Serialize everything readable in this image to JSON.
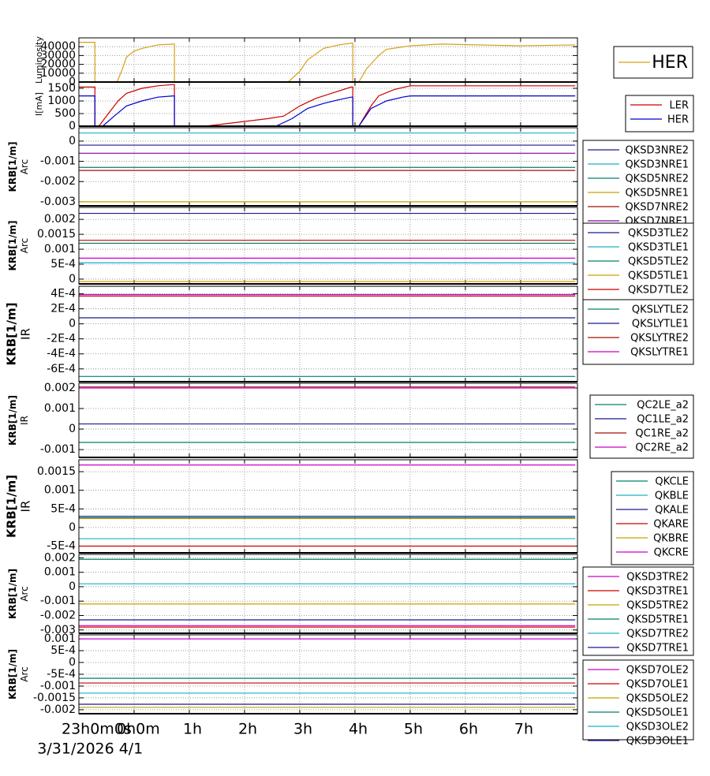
{
  "chart_data": [
    {
      "type": "line",
      "ylabel": [
        "Luminosity"
      ],
      "xlim": [
        -1,
        8.03
      ],
      "ylim": [
        0,
        50000
      ],
      "yticks": [
        0,
        10000,
        20000,
        30000,
        40000
      ],
      "grid": true,
      "legend": "right",
      "x": [
        -1,
        -0.71,
        -0.71,
        -0.31,
        -0.21,
        -0.14,
        0,
        0.14,
        0.43,
        0.71,
        0.73,
        0.73,
        2.79,
        3.0,
        3.14,
        3.43,
        3.71,
        3.93,
        3.96,
        3.96,
        4.07,
        4.21,
        4.43,
        4.57,
        5.0,
        5.57,
        7.0,
        7.99
      ],
      "series": [
        {
          "name": "HER",
          "color": "#d4a017",
          "values": [
            45000,
            45000,
            0,
            0,
            15000,
            28000,
            35000,
            38000,
            42000,
            43000,
            43000,
            0,
            0,
            12000,
            25000,
            38000,
            42000,
            44000,
            44000,
            0,
            0,
            15000,
            30000,
            37000,
            41000,
            43000,
            41000,
            42000
          ]
        }
      ]
    },
    {
      "type": "line",
      "ylabel": [
        "I[mA]"
      ],
      "xlim": [
        -1,
        8.03
      ],
      "ylim": [
        0,
        1750
      ],
      "yticks": [
        0,
        500,
        1000,
        1500
      ],
      "grid": true,
      "legend": "right",
      "series": [
        {
          "name": "LER",
          "color": "#cc0000",
          "x": [
            -1,
            -0.71,
            -0.71,
            -0.64,
            -0.43,
            -0.29,
            -0.14,
            0.14,
            0.43,
            0.71,
            0.73,
            0.73,
            1.29,
            2.43,
            2.71,
            3.0,
            3.29,
            3.57,
            3.93,
            3.96,
            3.96,
            4.07,
            4.29,
            4.43,
            4.71,
            5.0,
            7.99
          ],
          "values": [
            1550,
            1550,
            0,
            0,
            600,
            1000,
            1300,
            1500,
            1600,
            1650,
            1650,
            0,
            0,
            300,
            400,
            800,
            1100,
            1300,
            1550,
            1550,
            0,
            0,
            800,
            1200,
            1450,
            1600,
            1600
          ]
        },
        {
          "name": "HER",
          "color": "#0000cc",
          "x": [
            -1,
            -0.71,
            -0.71,
            -0.57,
            -0.36,
            -0.14,
            0.14,
            0.43,
            0.71,
            0.73,
            0.73,
            2.57,
            2.86,
            3.14,
            3.43,
            3.71,
            3.93,
            3.96,
            3.96,
            4.07,
            4.29,
            4.57,
            4.86,
            5.0,
            7.99
          ],
          "values": [
            1200,
            1200,
            0,
            0,
            400,
            800,
            1000,
            1150,
            1200,
            1200,
            0,
            0,
            300,
            700,
            900,
            1050,
            1150,
            1150,
            0,
            0,
            700,
            1000,
            1150,
            1200,
            1200
          ]
        }
      ]
    },
    {
      "type": "line",
      "ylabel": [
        "KRB[1/m]",
        "Arc"
      ],
      "xlim": [
        -1,
        8.03
      ],
      "ylim": [
        -0.0032,
        0.00066
      ],
      "yticks": [
        0,
        -0.001,
        -0.002,
        -0.003
      ],
      "grid": true,
      "legend": "right",
      "x": [
        -1,
        7.99
      ],
      "series": [
        {
          "name": "QKSD3NRE2",
          "color": "#1a1a8c",
          "values": [
            -0.0002,
            -0.0002
          ]
        },
        {
          "name": "QKSD3NRE1",
          "color": "#1ab0c8",
          "values": [
            0.0004,
            0.0004
          ]
        },
        {
          "name": "QKSD5NRE2",
          "color": "#00806a",
          "values": [
            -0.0013,
            -0.0013
          ]
        },
        {
          "name": "QKSD5NRE1",
          "color": "#c8a000",
          "values": [
            -0.003,
            -0.003
          ]
        },
        {
          "name": "QKSD7NRE2",
          "color": "#a01010",
          "values": [
            -0.00145,
            -0.00145
          ]
        },
        {
          "name": "QKSD7NRE1",
          "color": "#8000a0",
          "values": [
            -0.0006,
            -0.0006
          ]
        }
      ]
    },
    {
      "type": "line",
      "ylabel": [
        "KRB[1/m]",
        "Arc"
      ],
      "xlim": [
        -1,
        8.03
      ],
      "ylim": [
        -0.00016,
        0.0024
      ],
      "yticks": [
        0,
        {
          "value": 0.0005,
          "label": "5E-4"
        },
        0.001,
        0.0015,
        0.002
      ],
      "grid": true,
      "legend": "right",
      "x": [
        -1,
        7.99
      ],
      "series": [
        {
          "name": "QKSD3TLE2",
          "color": "#1a1a8c",
          "values": [
            0.0022,
            0.0022
          ]
        },
        {
          "name": "QKSD3TLE1",
          "color": "#1ab0c8",
          "values": [
            0.00055,
            0.00055
          ]
        },
        {
          "name": "QKSD5TLE2",
          "color": "#00806a",
          "values": [
            0.0012,
            0.0012
          ]
        },
        {
          "name": "QKSD5TLE1",
          "color": "#c8a000",
          "values": [
            -8e-05,
            -8e-05
          ]
        },
        {
          "name": "QKSD7TLE2",
          "color": "#cc0000",
          "values": [
            0.0013,
            0.0013
          ]
        },
        {
          "name": "QKSD7TLE1",
          "color": "#cc00cc",
          "values": [
            0.0007,
            0.0007
          ]
        }
      ]
    },
    {
      "type": "line",
      "ylabel": [
        "KRB[1/m]",
        "IR"
      ],
      "xlim": [
        -1,
        8.03
      ],
      "ylim": [
        -0.00077,
        0.0005
      ],
      "yticks": [
        {
          "value": 0.0004,
          "label": "4E-4"
        },
        {
          "value": 0.0002,
          "label": "2E-4"
        },
        0,
        {
          "value": -0.0002,
          "label": "-2E-4"
        },
        {
          "value": -0.0004,
          "label": "-4E-4"
        },
        {
          "value": -0.0006,
          "label": "-6E-4"
        }
      ],
      "grid": true,
      "legend": "right",
      "x": [
        -1,
        7.99
      ],
      "series": [
        {
          "name": "QKSLYTLE2",
          "color": "#00806a",
          "values": [
            -0.0007,
            -0.0007
          ]
        },
        {
          "name": "QKSLYTLE1",
          "color": "#1a1a8c",
          "values": [
            8e-05,
            8e-05
          ]
        },
        {
          "name": "QKSLYTRE2",
          "color": "#a01010",
          "values": [
            0.00037,
            0.00037
          ]
        },
        {
          "name": "QKSLYTRE1",
          "color": "#cc00cc",
          "values": [
            0.00039,
            0.00039
          ]
        }
      ]
    },
    {
      "type": "line",
      "ylabel": [
        "KRB[1/m]",
        "IR"
      ],
      "xlim": [
        -1,
        8.03
      ],
      "ylim": [
        -0.00138,
        0.00223
      ],
      "yticks": [
        0.002,
        0.001,
        0,
        -0.001
      ],
      "grid": true,
      "legend": "right",
      "x": [
        -1,
        7.99
      ],
      "series": [
        {
          "name": "QC2LE_a2",
          "color": "#00806a",
          "values": [
            -0.00065,
            -0.00065
          ]
        },
        {
          "name": "QC1LE_a2",
          "color": "#1a1a8c",
          "values": [
            0.00025,
            0.00025
          ]
        },
        {
          "name": "QC1RE_a2",
          "color": "#a01010",
          "values": [
            0.00205,
            0.00205
          ]
        },
        {
          "name": "QC2RE_a2",
          "color": "#cc00cc",
          "values": [
            0.002,
            0.002
          ]
        }
      ]
    },
    {
      "type": "line",
      "ylabel": [
        "KRB[1/m]",
        "IR"
      ],
      "xlim": [
        -1,
        8.03
      ],
      "ylim": [
        -0.00068,
        0.00182
      ],
      "yticks": [
        0.0015,
        0.001,
        {
          "value": 0.0005,
          "label": "5E-4"
        },
        0,
        {
          "value": -0.0005,
          "label": "-5E-4"
        }
      ],
      "grid": true,
      "legend": "right",
      "x": [
        -1,
        7.99
      ],
      "series": [
        {
          "name": "QKCLE",
          "color": "#00806a",
          "values": [
            0.00026,
            0.00026
          ]
        },
        {
          "name": "QKBLE",
          "color": "#1ab0c8",
          "values": [
            -0.0003,
            -0.0003
          ]
        },
        {
          "name": "QKALE",
          "color": "#1a1a8c",
          "values": [
            0.0003,
            0.0003
          ]
        },
        {
          "name": "QKARE",
          "color": "#cc0000",
          "values": [
            -0.0005,
            -0.0005
          ]
        },
        {
          "name": "QKBRE",
          "color": "#c8a000",
          "values": [
            0.00024,
            0.00024
          ]
        },
        {
          "name": "QKCRE",
          "color": "#cc00cc",
          "values": [
            0.00168,
            0.00168
          ]
        }
      ]
    },
    {
      "type": "line",
      "ylabel": [
        "KRB[1/m]",
        "Arc"
      ],
      "xlim": [
        -1,
        8.03
      ],
      "ylim": [
        -0.00323,
        0.00224
      ],
      "yticks": [
        0.002,
        0.001,
        0,
        -0.001,
        -0.002,
        -0.003
      ],
      "grid": true,
      "legend": "right",
      "x": [
        -1,
        7.99
      ],
      "series": [
        {
          "name": "QKSD3TRE2",
          "color": "#cc00cc",
          "values": [
            -0.0027,
            -0.0027
          ]
        },
        {
          "name": "QKSD3TRE1",
          "color": "#cc0000",
          "values": [
            -0.0028,
            -0.0028
          ]
        },
        {
          "name": "QKSD5TRE2",
          "color": "#c8a000",
          "values": [
            -0.0012,
            -0.0012
          ]
        },
        {
          "name": "QKSD5TRE1",
          "color": "#00806a",
          "values": [
            0.0019,
            0.0019
          ]
        },
        {
          "name": "QKSD7TRE2",
          "color": "#1ab0c8",
          "values": [
            0.0002,
            0.0002
          ]
        },
        {
          "name": "QKSD7TRE1",
          "color": "#1a1a8c",
          "values": [
            -0.0023,
            -0.0023
          ]
        }
      ]
    },
    {
      "type": "line",
      "ylabel": [
        "KRB[1/m]",
        "Arc"
      ],
      "xlim": [
        -1,
        8.03
      ],
      "ylim": [
        -0.00217,
        0.00117
      ],
      "yticks": [
        0.001,
        {
          "value": 0.0005,
          "label": "5E-4"
        },
        0,
        {
          "value": -0.0005,
          "label": "-5E-4"
        },
        -0.001,
        -0.0015,
        -0.002
      ],
      "grid": true,
      "legend": "right",
      "x": [
        -1,
        7.99
      ],
      "xticks": [
        {
          "value": -1,
          "label": "23h0m0s"
        },
        {
          "value": 0,
          "label": "0h0m"
        },
        {
          "value": 1,
          "label": "1h"
        },
        {
          "value": 2,
          "label": "2h"
        },
        {
          "value": 3,
          "label": "3h"
        },
        {
          "value": 4,
          "label": "4h"
        },
        {
          "value": 5,
          "label": "5h"
        },
        {
          "value": 6,
          "label": "6h"
        },
        {
          "value": 7,
          "label": "7h"
        }
      ],
      "date_labels": [
        {
          "value": -1,
          "label": "3/31/2026"
        },
        {
          "value": 0,
          "label": "4/1"
        }
      ],
      "series": [
        {
          "name": "QKSD7OLE2",
          "color": "#cc00cc",
          "values": [
            0.001,
            0.001
          ]
        },
        {
          "name": "QKSD7OLE1",
          "color": "#cc0000",
          "values": [
            -0.00087,
            -0.00087
          ]
        },
        {
          "name": "QKSD5OLE2",
          "color": "#c8a000",
          "values": [
            -0.0019,
            -0.0019
          ]
        },
        {
          "name": "QKSD5OLE1",
          "color": "#00806a",
          "values": [
            -0.00067,
            -0.00067
          ]
        },
        {
          "name": "QKSD3OLE2",
          "color": "#1ab0c8",
          "values": [
            -0.0013,
            -0.0013
          ]
        },
        {
          "name": "QKSD3OLE1",
          "color": "#1a1a8c",
          "values": [
            -0.00177,
            -0.00177
          ]
        }
      ]
    }
  ]
}
